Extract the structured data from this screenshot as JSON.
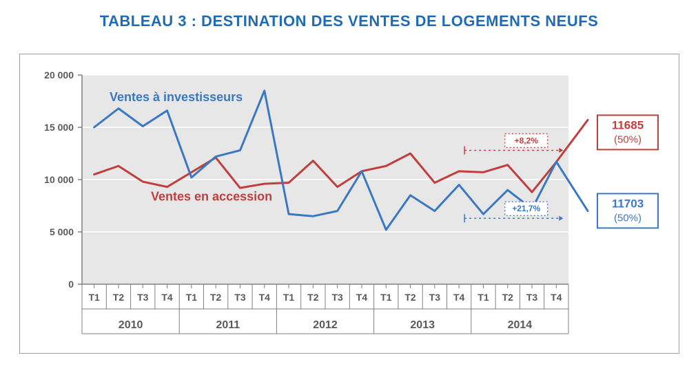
{
  "title": {
    "text": "TABLEAU 3 : DESTINATION DES VENTES DE LOGEMENTS NEUFS",
    "color": "#1f6bb6",
    "fontsize": 22,
    "fontweight": 700
  },
  "chart": {
    "type": "line",
    "outer_border_color": "#9aa0a6",
    "background_color": "#ffffff",
    "plot_background_color": "#e7e7e7",
    "axis_line_color": "#7f7f7f",
    "gridline_color": "#ffffff",
    "tick_label_color": "#595959",
    "tick_font_size": 14,
    "year_font_size": 16,
    "line_width": 3,
    "y": {
      "min": 0,
      "max": 20000,
      "tick_step": 5000,
      "tick_labels": [
        "0",
        "5 000",
        "10 000",
        "15 000",
        "20 000"
      ]
    },
    "x": {
      "years": [
        "2010",
        "2011",
        "2012",
        "2013",
        "2014"
      ],
      "quarters": [
        "T1",
        "T2",
        "T3",
        "T4"
      ]
    },
    "series": [
      {
        "id": "investisseurs",
        "label": "Ventes à investisseurs",
        "label_color": "#3b78c3",
        "color": "#3b78c3",
        "values": [
          15000,
          16800,
          15100,
          16600,
          10200,
          12200,
          12800,
          18500,
          6700,
          6500,
          7000,
          10800,
          5200,
          8500,
          7000,
          9500,
          6700,
          9000,
          7200,
          11703
        ],
        "callout_value": "11703",
        "callout_pct": "(50%)",
        "callout_border": "#3b78c3",
        "callout_text_color": "#3b78c3",
        "delta_label": "+21,7%",
        "delta_border": "#3b78c3",
        "delta_text_color": "#3b78c3",
        "post_tail": 7000
      },
      {
        "id": "accession",
        "label": "Ventes en accession",
        "label_color": "#c23d3d",
        "color": "#c23d3d",
        "values": [
          10500,
          11300,
          9800,
          9300,
          10700,
          12100,
          9200,
          9600,
          9700,
          11800,
          9300,
          10800,
          11300,
          12500,
          9700,
          10800,
          10700,
          11400,
          8800,
          11685
        ],
        "callout_value": "11685",
        "callout_pct": "(50%)",
        "callout_border": "#c23d3d",
        "callout_text_color": "#c23d3d",
        "delta_label": "+8,2%",
        "delta_border": "#c23d3d",
        "delta_text_color": "#c23d3d",
        "post_tail": 15700
      }
    ]
  }
}
